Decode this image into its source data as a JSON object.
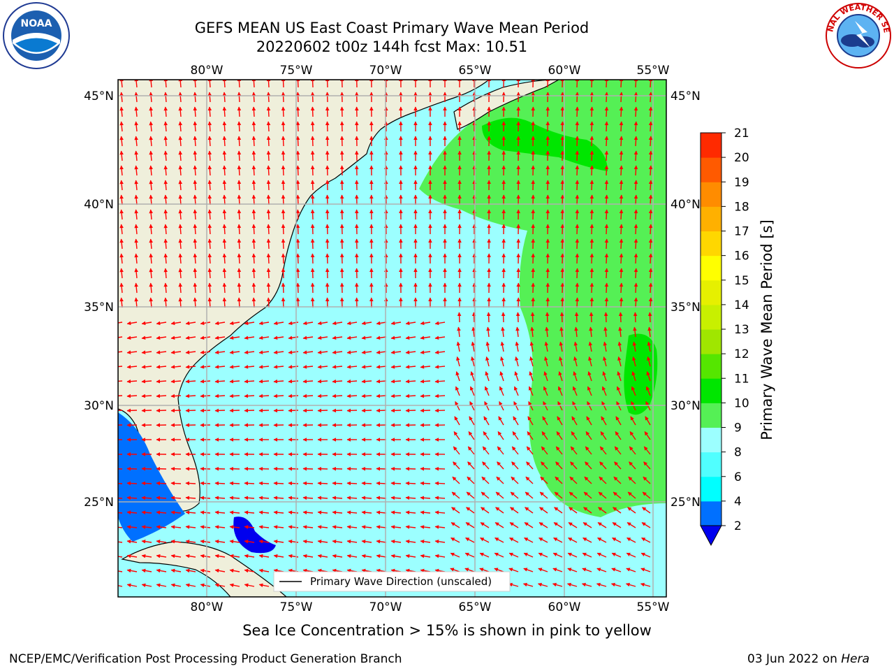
{
  "title_line1": "GEFS MEAN US East Coast Primary Wave Mean Period",
  "title_line2": "20220602 t00z 144h fcst   Max: 10.51",
  "lon_ticks": [
    "80°W",
    "75°W",
    "70°W",
    "65°W",
    "60°W",
    "55°W"
  ],
  "lat_ticks": [
    "45°N",
    "40°N",
    "35°N",
    "30°N",
    "25°N"
  ],
  "legend_label": "Primary Wave Direction (unscaled)",
  "colorbar": {
    "label": "Primary Wave Mean Period [s]",
    "levels": [
      "2",
      "4",
      "6",
      "8",
      "9",
      "10",
      "11",
      "12",
      "13",
      "14",
      "15",
      "16",
      "17",
      "18",
      "19",
      "20",
      "21"
    ],
    "colors": [
      "#0000ee",
      "#0070ff",
      "#00ffff",
      "#50ffff",
      "#9cffff",
      "#55f055",
      "#00e600",
      "#55e600",
      "#a0e600",
      "#c8f000",
      "#e6f000",
      "#ffff00",
      "#ffd700",
      "#ffb000",
      "#ff8c00",
      "#ff5a00",
      "#ff2a00",
      "#ff0000"
    ]
  },
  "note": "Sea Ice Concentration > 15% is shown in pink to yellow",
  "footer_left": "NCEP/EMC/Verification Post Processing Product Generation Branch",
  "footer_right_date": "03 Jun 2022 on ",
  "footer_right_machine": "Hera",
  "logos": {
    "left": "NOAA",
    "right_ring": "NATIONAL WEATHER SERVICE"
  }
}
